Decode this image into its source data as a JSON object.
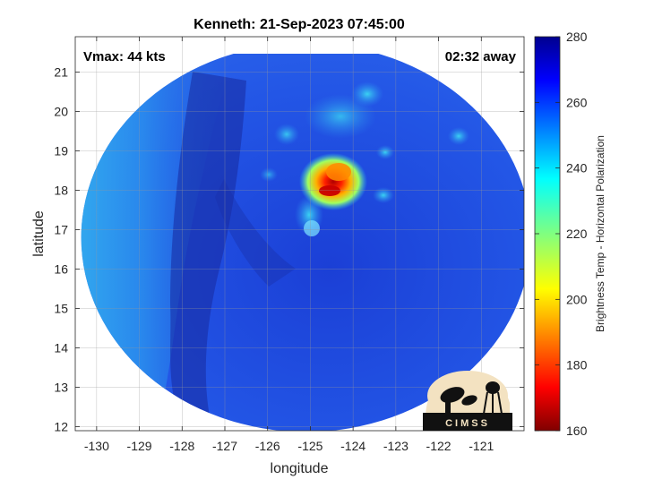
{
  "chart_data": {
    "type": "heatmap",
    "title": "Kenneth: 21-Sep-2023 07:45:00",
    "xlabel": "longitude",
    "ylabel": "latitude",
    "xlim": [
      -130.5,
      -120
    ],
    "ylim": [
      11.9,
      21.9
    ],
    "xticks": [
      -130,
      -129,
      -128,
      -127,
      -126,
      -125,
      -124,
      -123,
      -122,
      -121
    ],
    "yticks": [
      12,
      13,
      14,
      15,
      16,
      17,
      18,
      19,
      20,
      21
    ],
    "xtick_labels": [
      "-130",
      "-129",
      "-128",
      "-127",
      "-126",
      "-125",
      "-124",
      "-123",
      "-122",
      "-121"
    ],
    "ytick_labels": [
      "12",
      "13",
      "14",
      "15",
      "16",
      "17",
      "18",
      "19",
      "20",
      "21"
    ],
    "grid": true,
    "annotations": {
      "vmax": "Vmax: 44 kts",
      "time_away": "02:32 away"
    },
    "colorbar": {
      "label": "Brightness Temp - Horizontal Polarization",
      "range": [
        160,
        280
      ],
      "ticks": [
        160,
        180,
        200,
        220,
        240,
        260,
        280
      ],
      "tick_labels": [
        "160",
        "180",
        "200",
        "220",
        "240",
        "260",
        "280"
      ],
      "colormap": "jet"
    },
    "swath": {
      "center_lon": -125.1,
      "center_lat": 16.8,
      "shape": "circular",
      "background_value_range": [
        245,
        265
      ]
    },
    "cold_features": [
      {
        "lon": -124.7,
        "lat": 18.0,
        "value": 168
      },
      {
        "lon": -124.5,
        "lat": 18.3,
        "value": 192
      },
      {
        "lon": -124.8,
        "lat": 17.8,
        "value": 212
      },
      {
        "lon": -125.0,
        "lat": 17.1,
        "value": 232
      },
      {
        "lon": -124.2,
        "lat": 19.6,
        "value": 236
      },
      {
        "lon": -123.5,
        "lat": 19.9,
        "value": 238
      },
      {
        "lon": -125.5,
        "lat": 19.3,
        "value": 240
      },
      {
        "lon": -122.1,
        "lat": 19.0,
        "value": 238
      },
      {
        "lon": -123.8,
        "lat": 17.6,
        "value": 238
      }
    ],
    "logo_text": "CIMSS"
  },
  "colors": {
    "swath_base": "#1f4fe0",
    "warm_band": "#17209e",
    "cool_band": "#2f9cf0",
    "cyan_patch": "#36c8ef"
  }
}
